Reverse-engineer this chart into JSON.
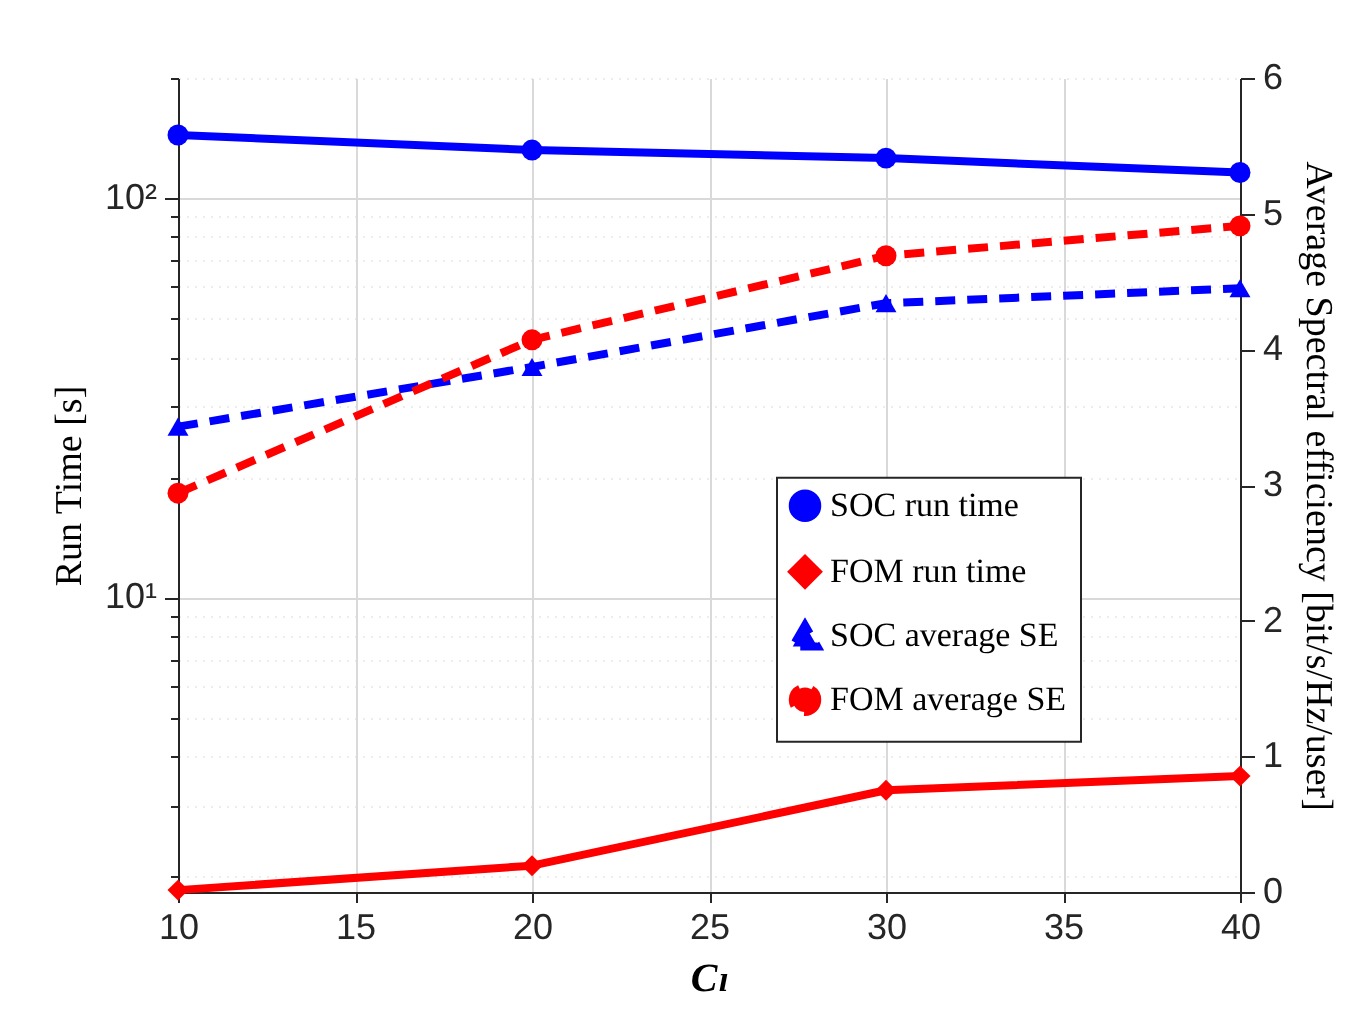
{
  "chart_data": {
    "type": "line",
    "xlabel": "Cₗ",
    "ylabel": "Run Time [s]",
    "y2label": "Average Spectral efficiency [bit/s/Hz/user]",
    "x": [
      10,
      20,
      30,
      40
    ],
    "series": [
      {
        "name": "SOC run time",
        "color": "#0000ff",
        "marker": "circle",
        "line_style": "solid",
        "values": [
          144,
          132,
          126,
          116
        ]
      },
      {
        "name": "FOM run time",
        "color": "#ff0000",
        "marker": "diamond",
        "line_style": "solid",
        "values": [
          1.85,
          2.13,
          3.29,
          3.57
        ]
      },
      {
        "name": "SOC average SE",
        "color": "#0000ff",
        "marker": "triangle",
        "line_style": "dashed",
        "axis": "y2",
        "values": [
          3.43,
          3.87,
          4.34,
          4.45
        ]
      },
      {
        "name": "FOM average SE",
        "color": "#ff0000",
        "marker": "circle",
        "line_style": "dashed",
        "axis": "y2",
        "values": [
          2.94,
          4.07,
          4.69,
          4.91
        ]
      }
    ],
    "log": "y",
    "xlim": [
      10,
      40
    ],
    "xticks": [
      10,
      15,
      20,
      25,
      30,
      35,
      40
    ],
    "ylim": [
      1.83,
      200
    ],
    "yticks": [
      {
        "value": 2,
        "label": null
      },
      {
        "value": 3,
        "label": null
      },
      {
        "value": 4,
        "label": null
      },
      {
        "value": 5,
        "label": null
      },
      {
        "value": 6,
        "label": null
      },
      {
        "value": 7,
        "label": null
      },
      {
        "value": 8,
        "label": null
      },
      {
        "value": 9,
        "label": null
      },
      {
        "value": 10,
        "label": "10¹"
      },
      {
        "value": 20,
        "label": null
      },
      {
        "value": 30,
        "label": null
      },
      {
        "value": 40,
        "label": null
      },
      {
        "value": 50,
        "label": null
      },
      {
        "value": 60,
        "label": null
      },
      {
        "value": 70,
        "label": null
      },
      {
        "value": 80,
        "label": null
      },
      {
        "value": 90,
        "label": null
      },
      {
        "value": 100,
        "label": "10²"
      },
      {
        "value": 200,
        "label": null
      }
    ],
    "y2lim": [
      0,
      6
    ],
    "y2ticks": [
      0,
      1,
      2,
      3,
      4,
      5,
      6
    ],
    "grid": true,
    "legend": "right"
  }
}
